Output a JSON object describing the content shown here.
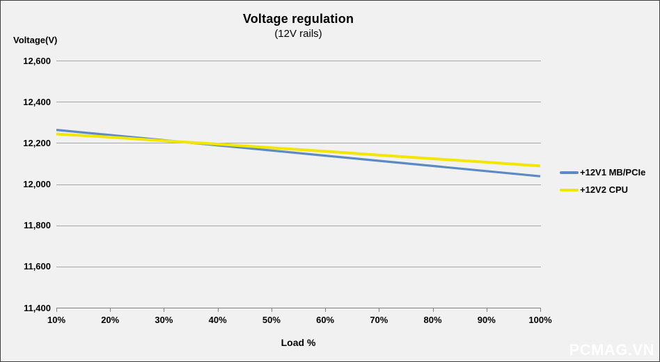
{
  "watermark": "PCMAG.VN",
  "chart_data": {
    "type": "line",
    "title": "Voltage regulation",
    "subtitle": "(12V rails)",
    "ylabel": "Voltage(V)",
    "xlabel": "Load %",
    "categories": [
      "10%",
      "20%",
      "30%",
      "40%",
      "50%",
      "60%",
      "70%",
      "80%",
      "90%",
      "100%"
    ],
    "ylim": [
      11400,
      12600
    ],
    "ytick_step": 200,
    "ytick_labels": [
      "12,600",
      "12,400",
      "12,200",
      "12,000",
      "11,800",
      "11,600",
      "11,400"
    ],
    "grid": true,
    "legend_position": "right",
    "series": [
      {
        "name": "+12V1 MB/PCIe",
        "color": "#5B8AC4",
        "stroke_width": 3.2,
        "values": [
          12265,
          12240,
          12215,
          12190,
          12165,
          12140,
          12115,
          12090,
          12065,
          12040
        ]
      },
      {
        "name": "+12V2 CPU",
        "color": "#F3E604",
        "stroke_width": 4,
        "values": [
          12245,
          12230,
          12212,
          12196,
          12178,
          12161,
          12143,
          12125,
          12108,
          12090
        ]
      }
    ]
  }
}
